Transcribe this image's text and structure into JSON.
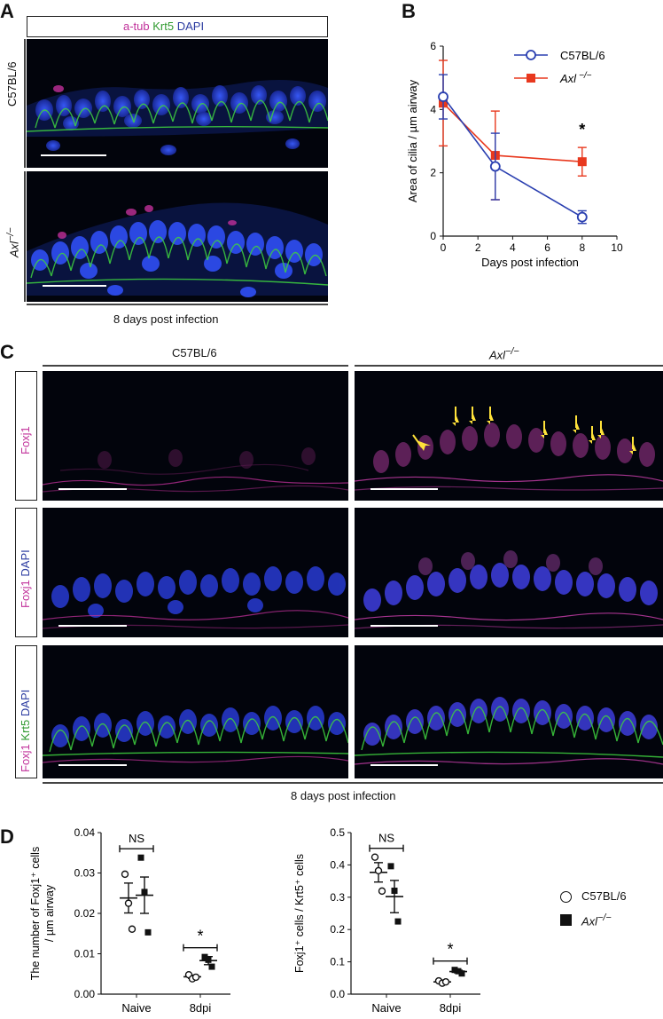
{
  "panels": {
    "a": {
      "letter": "A",
      "stain_labels": {
        "atub": "a-tub",
        "krt5": "Krt5",
        "dapi": "DAPI"
      },
      "row_labels": {
        "wt": "C57BL/6",
        "ko": "Axl"
      },
      "ko_superscript": "−/−",
      "footer": "8 days post infection"
    },
    "b": {
      "letter": "B"
    },
    "c": {
      "letter": "C",
      "col_labels": {
        "wt": "C57BL/6",
        "ko": "Axl"
      },
      "ko_superscript": "−/−",
      "row_labels": {
        "r1": {
          "foxj1": "Foxj1"
        },
        "r2": {
          "foxj1": "Foxj1",
          "dapi": "DAPI"
        },
        "r3": {
          "foxj1": "Foxj1",
          "krt5": "Krt5",
          "dapi": "DAPI"
        }
      },
      "footer": "8 days post infection"
    },
    "d": {
      "letter": "D",
      "legend": {
        "wt": "C57BL/6",
        "ko": "Axl",
        "ko_sup": "−/−"
      }
    }
  },
  "colors": {
    "wt": "#2a3fb0",
    "ko": "#e8381e",
    "magenta": "#c0309a",
    "green": "#2f9a2f",
    "arrow": "#ffe23a"
  },
  "chart_data": [
    {
      "id": "B",
      "type": "line",
      "xlabel": "Days post infection",
      "ylabel": "Area of cilia / µm airway",
      "xlim": [
        0,
        10
      ],
      "ylim": [
        0,
        6
      ],
      "xticks": [
        0,
        2,
        4,
        6,
        8,
        10
      ],
      "yticks": [
        0,
        2,
        4,
        6
      ],
      "legend_position": "top-right",
      "annotation": {
        "text": "*",
        "x": 8
      },
      "series": [
        {
          "name": "C57BL/6",
          "marker": "open-circle",
          "color": "#2a3fb0",
          "x": [
            0,
            3,
            8
          ],
          "y": [
            4.4,
            2.2,
            0.6
          ],
          "err": [
            0.7,
            1.05,
            0.2
          ]
        },
        {
          "name": "Axl −/−",
          "marker": "filled-square",
          "color": "#e8381e",
          "x": [
            0,
            3,
            8
          ],
          "y": [
            4.2,
            2.55,
            2.35
          ],
          "err": [
            1.35,
            1.4,
            0.45
          ]
        }
      ]
    },
    {
      "id": "D-left",
      "type": "scatter",
      "ylabel": "The number of Foxj1⁺ cells / µm airway",
      "categories": [
        "Naive",
        "8dpi"
      ],
      "ylim": [
        0,
        0.04
      ],
      "yticks": [
        "0.00",
        "0.01",
        "0.02",
        "0.03",
        "0.04"
      ],
      "annotations": [
        {
          "between": "Naive",
          "text": "NS"
        },
        {
          "between": "8dpi",
          "text": "*"
        }
      ],
      "series": [
        {
          "name": "C57BL/6",
          "values": [
            [
              0.0297,
              0.0225,
              0.0161
            ],
            [
              0.0048,
              0.0038,
              0.0042
            ]
          ],
          "mean": [
            0.0238,
            0.0043
          ],
          "sem": [
            0.0037,
            0.0004
          ]
        },
        {
          "name": "Axl −/−",
          "values": [
            [
              0.0338,
              0.0253,
              0.0153
            ],
            [
              0.0092,
              0.0085,
              0.0068
            ]
          ],
          "mean": [
            0.0245,
            0.0083
          ],
          "sem": [
            0.0045,
            0.001
          ]
        }
      ]
    },
    {
      "id": "D-right",
      "type": "scatter",
      "ylabel": "Foxj1⁺ cells / Krt5⁺ cells",
      "categories": [
        "Naive",
        "8dpi"
      ],
      "ylim": [
        0,
        0.5
      ],
      "yticks": [
        "0.0",
        "0.1",
        "0.2",
        "0.3",
        "0.4",
        "0.5"
      ],
      "annotations": [
        {
          "between": "Naive",
          "text": "NS"
        },
        {
          "between": "8dpi",
          "text": "*"
        }
      ],
      "series": [
        {
          "name": "C57BL/6",
          "values": [
            [
              0.424,
              0.382,
              0.319
            ],
            [
              0.041,
              0.034,
              0.038
            ]
          ],
          "mean": [
            0.377,
            0.038
          ],
          "sem": [
            0.03,
            0.003
          ]
        },
        {
          "name": "Axl −/−",
          "values": [
            [
              0.396,
              0.32,
              0.225
            ],
            [
              0.075,
              0.071,
              0.064
            ]
          ],
          "mean": [
            0.302,
            0.07
          ],
          "sem": [
            0.05,
            0.004
          ]
        }
      ]
    }
  ]
}
